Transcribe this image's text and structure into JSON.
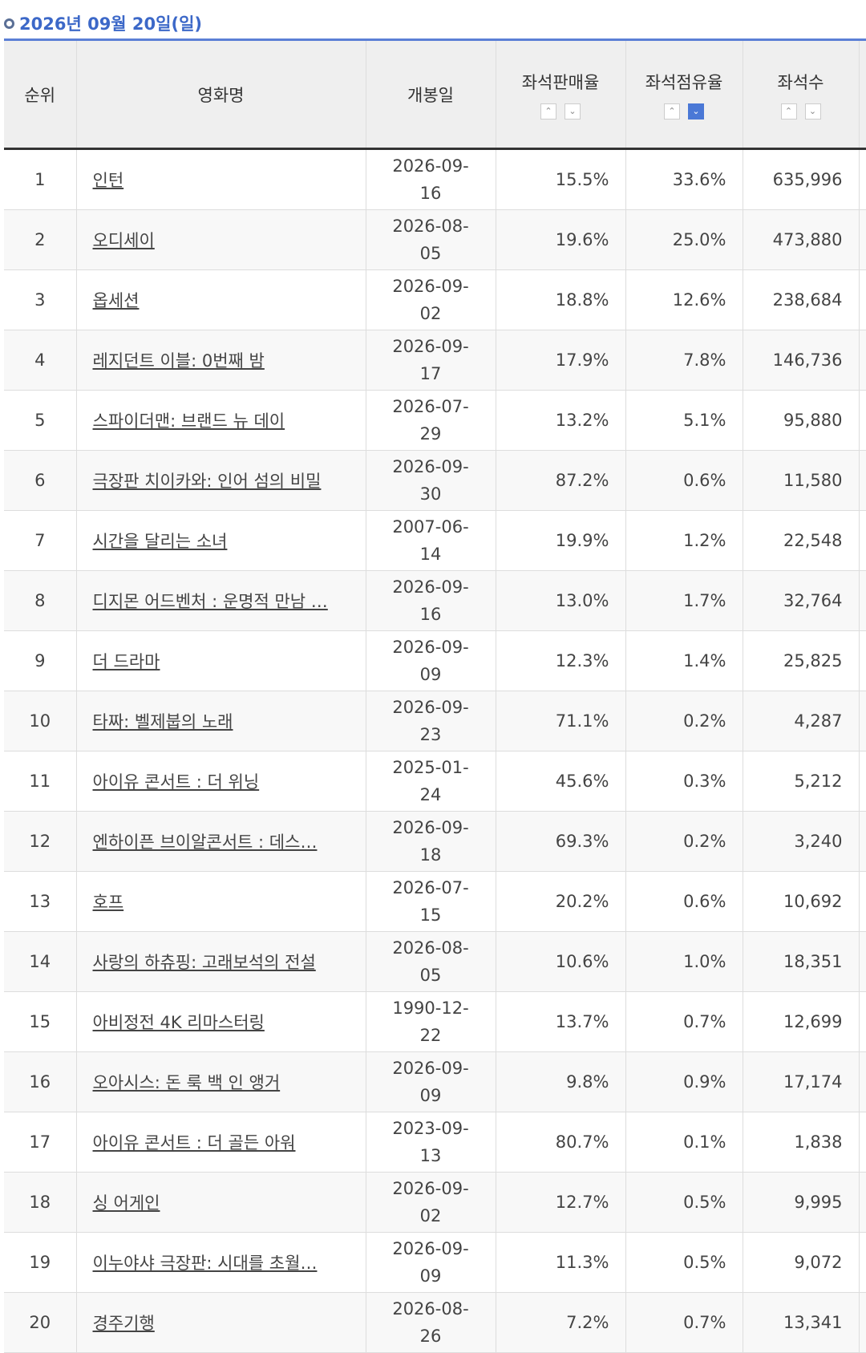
{
  "header": {
    "title": "2026년 09월 20일(일)"
  },
  "table": {
    "columns": [
      "순위",
      "영화명",
      "개봉일",
      "좌석판매율",
      "좌석점유율",
      "좌석수"
    ],
    "rows": [
      [
        1,
        "인턴",
        "2026-09-16",
        "15.5%",
        "33.6%",
        "635,996"
      ],
      [
        2,
        "오디세이",
        "2026-08-05",
        "19.6%",
        "25.0%",
        "473,880"
      ],
      [
        3,
        "옵세션",
        "2026-09-02",
        "18.8%",
        "12.6%",
        "238,684"
      ],
      [
        4,
        "레지던트 이블: 0번째 밤",
        "2026-09-17",
        "17.9%",
        "7.8%",
        "146,736"
      ],
      [
        5,
        "스파이더맨: 브랜드 뉴 데이",
        "2026-07-29",
        "13.2%",
        "5.1%",
        "95,880"
      ],
      [
        6,
        "극장판 치이카와: 인어 섬의 비밀",
        "2026-09-30",
        "87.2%",
        "0.6%",
        "11,580"
      ],
      [
        7,
        "시간을 달리는 소녀",
        "2007-06-14",
        "19.9%",
        "1.2%",
        "22,548"
      ],
      [
        8,
        "디지몬 어드벤처 : 운명적 만남 …",
        "2026-09-16",
        "13.0%",
        "1.7%",
        "32,764"
      ],
      [
        9,
        "더 드라마",
        "2026-09-09",
        "12.3%",
        "1.4%",
        "25,825"
      ],
      [
        10,
        "타짜: 벨제붑의 노래",
        "2026-09-23",
        "71.1%",
        "0.2%",
        "4,287"
      ],
      [
        11,
        "아이유 콘서트 : 더 위닝",
        "2025-01-24",
        "45.6%",
        "0.3%",
        "5,212"
      ],
      [
        12,
        "엔하이픈 브이알콘서트 : 데스…",
        "2026-09-18",
        "69.3%",
        "0.2%",
        "3,240"
      ],
      [
        13,
        "호프",
        "2026-07-15",
        "20.2%",
        "0.6%",
        "10,692"
      ],
      [
        14,
        "사랑의 하츄핑: 고래보석의 전설",
        "2026-08-05",
        "10.6%",
        "1.0%",
        "18,351"
      ],
      [
        15,
        "아비정전 4K 리마스터링",
        "1990-12-22",
        "13.7%",
        "0.7%",
        "12,699"
      ],
      [
        16,
        "오아시스: 돈 룩 백 인 앵거",
        "2026-09-09",
        "9.8%",
        "0.9%",
        "17,174"
      ],
      [
        17,
        "아이유 콘서트 : 더 골든 아워",
        "2023-09-13",
        "80.7%",
        "0.1%",
        "1,838"
      ],
      [
        18,
        "싱 어게인",
        "2026-09-02",
        "12.7%",
        "0.5%",
        "9,995"
      ],
      [
        19,
        "이누야샤 극장판: 시대를 초월…",
        "2026-09-09",
        "11.3%",
        "0.5%",
        "9,072"
      ],
      [
        20,
        "경주기행",
        "2026-08-26",
        "7.2%",
        "0.7%",
        "13,341"
      ]
    ]
  }
}
